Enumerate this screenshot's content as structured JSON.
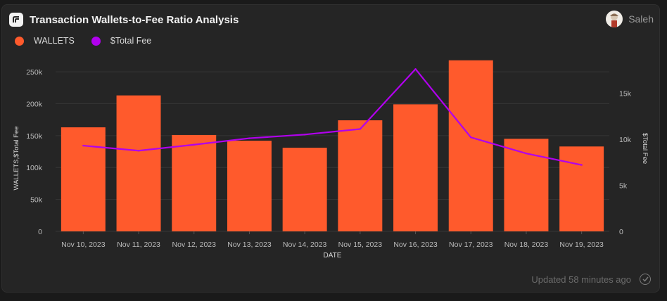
{
  "header": {
    "title": "Transaction Wallets-to-Fee Ratio Analysis",
    "logo_icon": "flipside-logo-icon"
  },
  "user": {
    "name": "Saleh",
    "avatar_icon": "user-avatar-icon"
  },
  "footer": {
    "updated_text": "Updated 58 minutes ago",
    "status_icon": "check-circle-icon"
  },
  "colors": {
    "wallets": "#ff5a2c",
    "fee": "#b100ee",
    "grid": "#363636",
    "tick": "#bcbcbc"
  },
  "chart_data": {
    "type": "bar",
    "categories": [
      "Nov 10, 2023",
      "Nov 11, 2023",
      "Nov 12, 2023",
      "Nov 13, 2023",
      "Nov 14, 2023",
      "Nov 15, 2023",
      "Nov 16, 2023",
      "Nov 17, 2023",
      "Nov 18, 2023",
      "Nov 19, 2023"
    ],
    "series": [
      {
        "name": "WALLETS",
        "type": "bar",
        "axis": "left",
        "values": [
          163000,
          213000,
          151000,
          142000,
          131000,
          174000,
          199000,
          268000,
          145000,
          133000
        ]
      },
      {
        "name": "$Total Fee",
        "type": "line",
        "axis": "right",
        "values": [
          9300,
          8750,
          9400,
          10100,
          10500,
          11100,
          17600,
          10200,
          8450,
          7200
        ]
      }
    ],
    "xlabel": "DATE",
    "ylabel": "WALLETS,$Total Fee",
    "y2label": "$Total Fee",
    "ylim": [
      0,
      260000
    ],
    "y2lim": [
      0,
      18000
    ],
    "yticks": [
      0,
      50000,
      100000,
      150000,
      200000,
      250000
    ],
    "ytick_labels": [
      "0",
      "50k",
      "100k",
      "150k",
      "200k",
      "250k"
    ],
    "y2ticks": [
      0,
      5000,
      10000,
      15000
    ],
    "y2tick_labels": [
      "0",
      "5k",
      "10k",
      "15k"
    ],
    "grid": true,
    "legend": "top-left"
  }
}
